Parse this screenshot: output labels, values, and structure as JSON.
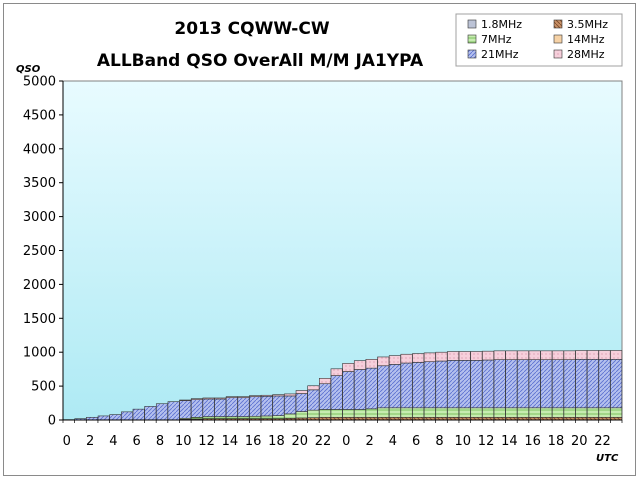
{
  "chart_data": {
    "type": "bar",
    "stacked": true,
    "title": "2013 CQWW-CW",
    "subtitle": "ALLBand QSO OverAll M/M JA1YPA",
    "ylabel": "QSO",
    "xlabel": "UTC",
    "ylim": [
      0,
      5000
    ],
    "yticks": [
      0,
      500,
      1000,
      1500,
      2000,
      2500,
      3000,
      3500,
      4000,
      4500,
      5000
    ],
    "categories": [
      0,
      1,
      2,
      3,
      4,
      5,
      6,
      7,
      8,
      9,
      10,
      11,
      12,
      13,
      14,
      15,
      16,
      17,
      18,
      19,
      20,
      21,
      22,
      23,
      0,
      1,
      2,
      3,
      4,
      5,
      6,
      7,
      8,
      9,
      10,
      11,
      12,
      13,
      14,
      15,
      16,
      17,
      18,
      19,
      20,
      21,
      22,
      23
    ],
    "xtick_labels": [
      "0",
      "2",
      "4",
      "6",
      "8",
      "10",
      "12",
      "14",
      "16",
      "18",
      "20",
      "22",
      "0",
      "2",
      "4",
      "6",
      "8",
      "10",
      "12",
      "14",
      "16",
      "18",
      "20",
      "22"
    ],
    "grid": false,
    "legend_position": "top-right",
    "plot_background": [
      "#e8fbff",
      "#aeeaf4"
    ],
    "series": [
      {
        "name": "1.8MHz",
        "color": "#bcc3d6",
        "values": [
          0,
          0,
          0,
          0,
          0,
          0,
          0,
          0,
          0,
          0,
          0,
          0,
          0,
          0,
          0,
          0,
          0,
          0,
          0,
          0,
          0,
          0,
          0,
          0,
          0,
          0,
          0,
          0,
          0,
          0,
          0,
          0,
          0,
          0,
          0,
          0,
          0,
          0,
          0,
          0,
          0,
          0,
          0,
          0,
          0,
          0,
          0,
          0
        ]
      },
      {
        "name": "3.5MHz",
        "color": "#c08a5a",
        "values": [
          0,
          0,
          0,
          0,
          0,
          0,
          0,
          0,
          0,
          0,
          10,
          15,
          20,
          20,
          20,
          20,
          20,
          20,
          20,
          25,
          30,
          35,
          40,
          40,
          40,
          40,
          40,
          40,
          40,
          40,
          40,
          40,
          40,
          40,
          40,
          40,
          40,
          40,
          40,
          40,
          40,
          40,
          40,
          40,
          40,
          40,
          40,
          40
        ]
      },
      {
        "name": "7MHz",
        "color": "#bfe8a8",
        "values": [
          0,
          0,
          0,
          0,
          0,
          0,
          0,
          0,
          0,
          0,
          15,
          25,
          30,
          30,
          30,
          30,
          35,
          40,
          45,
          65,
          95,
          110,
          115,
          115,
          115,
          115,
          125,
          140,
          140,
          140,
          140,
          140,
          140,
          140,
          140,
          140,
          140,
          140,
          140,
          140,
          140,
          140,
          140,
          140,
          140,
          140,
          140,
          140
        ]
      },
      {
        "name": "14MHz",
        "color": "#f6d2a6",
        "values": [
          0,
          0,
          0,
          0,
          0,
          0,
          0,
          0,
          0,
          0,
          0,
          0,
          0,
          0,
          0,
          0,
          0,
          0,
          0,
          0,
          0,
          0,
          0,
          0,
          0,
          0,
          0,
          0,
          0,
          0,
          0,
          0,
          0,
          0,
          0,
          0,
          0,
          0,
          0,
          0,
          0,
          0,
          0,
          0,
          0,
          0,
          0,
          0
        ]
      },
      {
        "name": "21MHz",
        "color": "#a8b6ea",
        "values": [
          5,
          20,
          40,
          60,
          80,
          120,
          160,
          200,
          240,
          270,
          260,
          260,
          260,
          260,
          280,
          280,
          290,
          290,
          290,
          265,
          265,
          300,
          380,
          500,
          560,
          590,
          600,
          620,
          640,
          660,
          670,
          680,
          690,
          700,
          700,
          700,
          705,
          710,
          710,
          710,
          710,
          710,
          710,
          710,
          715,
          715,
          715,
          715
        ]
      },
      {
        "name": "28MHz",
        "color": "#f4c8d4",
        "values": [
          0,
          0,
          0,
          0,
          0,
          0,
          0,
          0,
          0,
          0,
          10,
          15,
          15,
          15,
          15,
          15,
          15,
          15,
          20,
          30,
          45,
          60,
          80,
          100,
          120,
          130,
          130,
          130,
          130,
          130,
          130,
          130,
          130,
          130,
          130,
          130,
          130,
          130,
          130,
          130,
          130,
          130,
          130,
          130,
          130,
          130,
          130,
          130
        ]
      }
    ]
  }
}
